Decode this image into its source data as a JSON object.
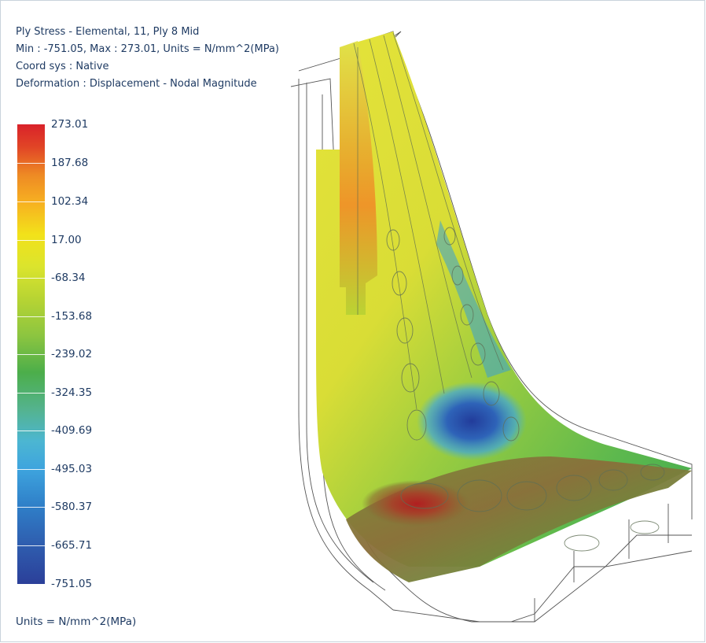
{
  "header": {
    "line1": "Ply Stress - Elemental, 11, Ply 8 Mid",
    "line2": "Min : -751.05, Max : 273.01, Units = N/mm^2(MPa)",
    "line3": "Coord sys : Native",
    "line4": "Deformation : Displacement - Nodal Magnitude"
  },
  "legend": {
    "labels": [
      "273.01",
      "187.68",
      "102.34",
      "17.00",
      "-68.34",
      "-153.68",
      "-239.02",
      "-324.35",
      "-409.69",
      "-495.03",
      "-580.37",
      "-665.71",
      "-751.05"
    ],
    "colors": {
      "max": "#d9222a",
      "mid": "#8cc540",
      "min": "#2b3f99"
    }
  },
  "units": "Units = N/mm^2(MPa)"
}
